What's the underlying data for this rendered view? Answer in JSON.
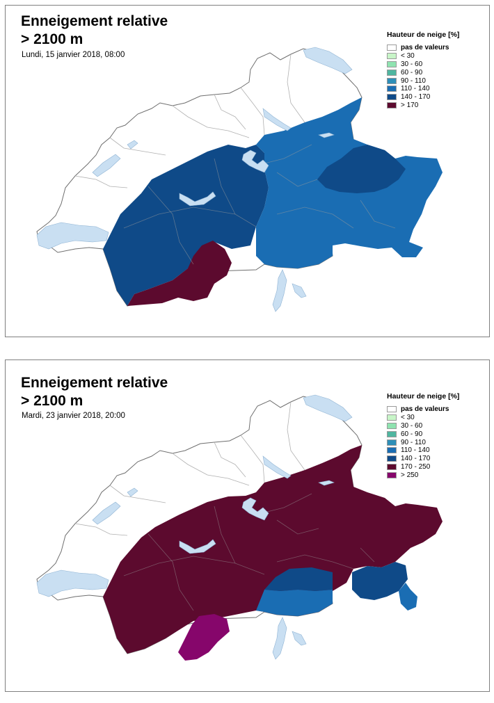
{
  "panels": [
    {
      "title_line1": "Enneigement relative",
      "title_line2": "> 2100 m",
      "date": "Lundi, 15 janvier 2018, 08:00",
      "legend_title": "Hauteur de neige [%]",
      "legend": [
        {
          "label": "pas de valeurs",
          "color": "#ffffff"
        },
        {
          "label": "< 30",
          "color": "#c8f5c8"
        },
        {
          "label": "30 - 60",
          "color": "#8fe3b0"
        },
        {
          "label": "60 - 90",
          "color": "#4fb6a0"
        },
        {
          "label": "90 - 110",
          "color": "#2e8fb8"
        },
        {
          "label": "110 - 140",
          "color": "#1a6db3"
        },
        {
          "label": "140 - 170",
          "color": "#0f4a88"
        },
        {
          "label": "> 170",
          "color": "#5c0a2e"
        }
      ],
      "regions": [
        {
          "name": "west-alps",
          "class": "140 - 170",
          "color": "#0f4a88"
        },
        {
          "name": "east-alps",
          "class": "110 - 140",
          "color": "#1a6db3"
        },
        {
          "name": "engadin",
          "class": "140 - 170",
          "color": "#0f4a88"
        },
        {
          "name": "upper-valais",
          "class": "> 170",
          "color": "#5c0a2e"
        }
      ]
    },
    {
      "title_line1": "Enneigement relative",
      "title_line2": "> 2100 m",
      "date": "Mardi, 23 janvier 2018, 20:00",
      "legend_title": "Hauteur de neige [%]",
      "legend": [
        {
          "label": "pas de valeurs",
          "color": "#ffffff"
        },
        {
          "label": "< 30",
          "color": "#c8f5c8"
        },
        {
          "label": "30 - 60",
          "color": "#8fe3b0"
        },
        {
          "label": "60 - 90",
          "color": "#4fb6a0"
        },
        {
          "label": "90 - 110",
          "color": "#2e8fb8"
        },
        {
          "label": "110 - 140",
          "color": "#1a6db3"
        },
        {
          "label": "140 - 170",
          "color": "#0f4a88"
        },
        {
          "label": "170 - 250",
          "color": "#5c0a2e"
        },
        {
          "label": "> 250",
          "color": "#86066b"
        }
      ],
      "regions": [
        {
          "name": "alps-main",
          "class": "170 - 250",
          "color": "#5c0a2e"
        },
        {
          "name": "southern-valais",
          "class": "> 250",
          "color": "#86066b"
        },
        {
          "name": "ticino-north",
          "class": "140 - 170",
          "color": "#0f4a88"
        },
        {
          "name": "ticino-south",
          "class": "110 - 140",
          "color": "#1a6db3"
        },
        {
          "name": "engadin",
          "class": "140 - 170",
          "color": "#0f4a88"
        },
        {
          "name": "poschiavo",
          "class": "110 - 140",
          "color": "#1a6db3"
        }
      ]
    }
  ],
  "colors": {
    "lake": "#c9dff2",
    "border": "#6e6e6e",
    "region_line": "#9a9a9a"
  }
}
